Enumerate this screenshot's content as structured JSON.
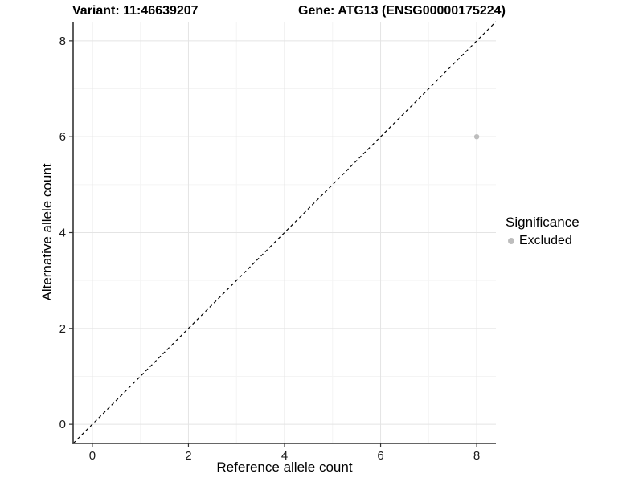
{
  "chart_data": {
    "type": "scatter",
    "title_variant": "Variant: 11:46639207",
    "title_gene": "Gene: ATG13 (ENSG00000175224)",
    "xlabel": "Reference allele count",
    "ylabel": "Alternative allele count",
    "xlim": [
      -0.4,
      8.4
    ],
    "ylim": [
      -0.4,
      8.4
    ],
    "xticks": [
      0,
      2,
      4,
      6,
      8
    ],
    "yticks": [
      0,
      2,
      4,
      6,
      8
    ],
    "x_minor_ticks": [
      1,
      3,
      5,
      7
    ],
    "y_minor_ticks": [
      1,
      3,
      5,
      7
    ],
    "grid": "major+minor",
    "identity_line": {
      "style": "dashed",
      "from": -0.4,
      "to": 8.4
    },
    "points": [
      {
        "x": 8,
        "y": 6,
        "significance": "Excluded"
      }
    ],
    "legend": {
      "title": "Significance",
      "position": "right",
      "items": [
        {
          "label": "Excluded",
          "color": "#bdbdbd"
        }
      ]
    }
  },
  "colors": {
    "background": "#ffffff",
    "point": "#bdbdbd",
    "grid_major": "#e4e4e4",
    "grid_minor": "#f4f4f4",
    "axis_line": "#333333",
    "identity_line": "#000000",
    "tick_text": "#1a1a1a",
    "title_text": "#000000"
  }
}
